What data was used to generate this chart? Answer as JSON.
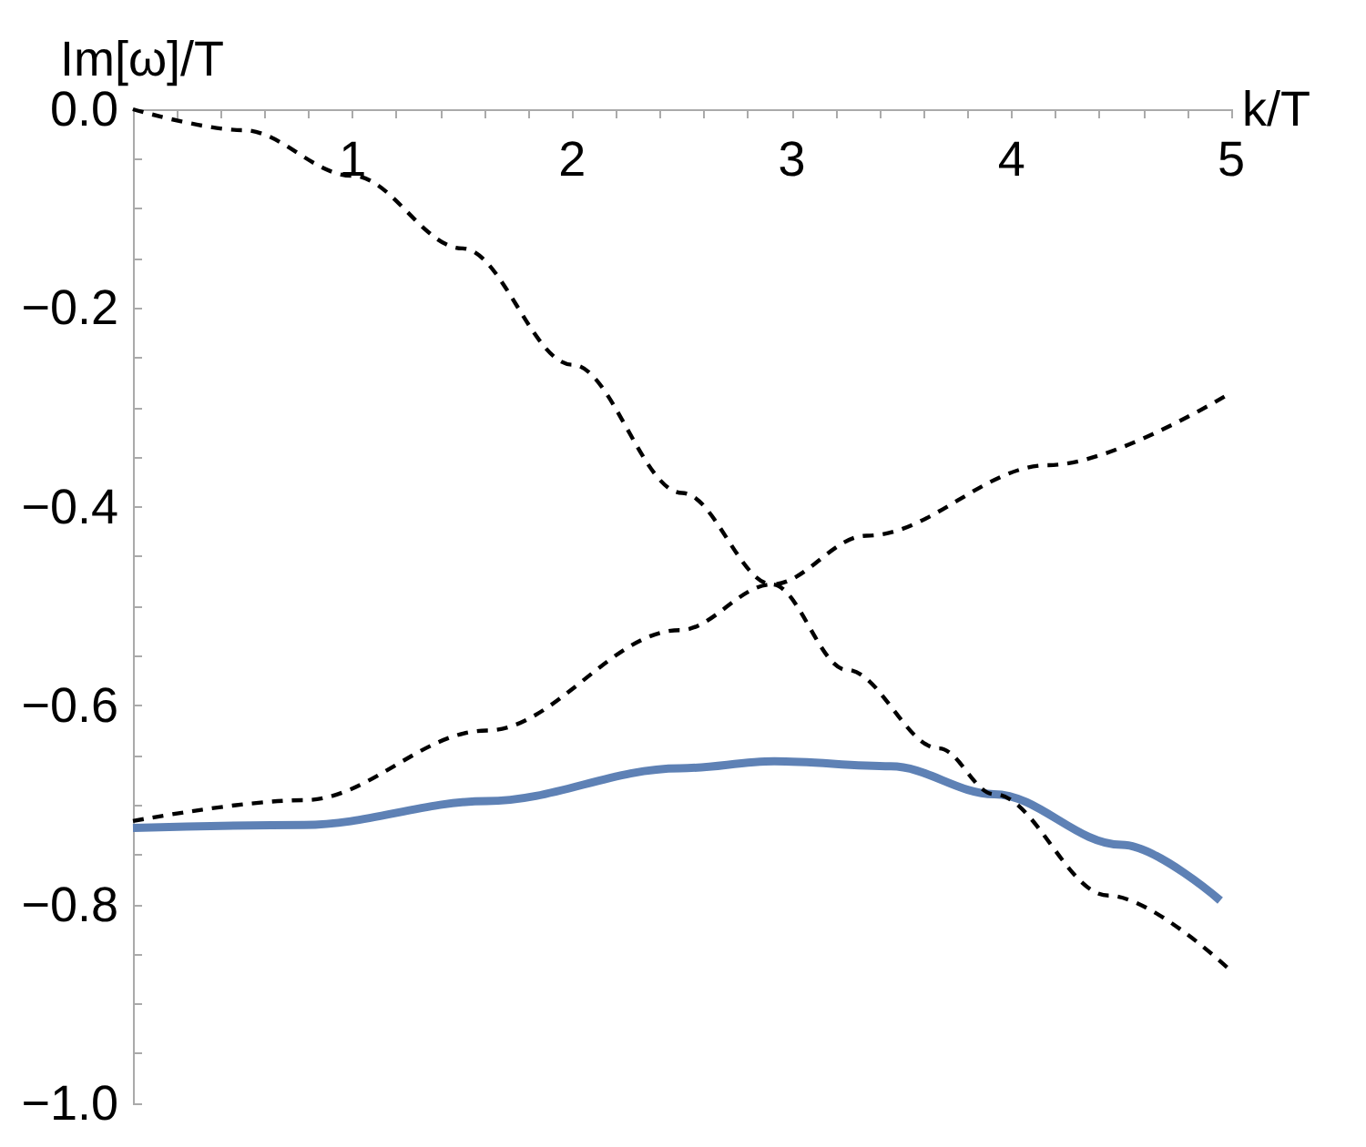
{
  "chart_data": {
    "type": "line",
    "xlabel": "k/T",
    "ylabel": "Im[ω]/T",
    "xlim": [
      0,
      5
    ],
    "ylim": [
      -1,
      0
    ],
    "xticks": [
      {
        "value": 0.2,
        "label": null
      },
      {
        "value": 0.4,
        "label": null
      },
      {
        "value": 0.6,
        "label": null
      },
      {
        "value": 0.8,
        "label": null
      },
      1,
      {
        "value": 1.2,
        "label": null
      },
      {
        "value": 1.4,
        "label": null
      },
      {
        "value": 1.6,
        "label": null
      },
      {
        "value": 1.8,
        "label": null
      },
      2,
      {
        "value": 2.2,
        "label": null
      },
      {
        "value": 2.4,
        "label": null
      },
      {
        "value": 2.6,
        "label": null
      },
      {
        "value": 2.8,
        "label": null
      },
      3,
      {
        "value": 3.2,
        "label": null
      },
      {
        "value": 3.4,
        "label": null
      },
      {
        "value": 3.6,
        "label": null
      },
      {
        "value": 3.8,
        "label": null
      },
      4,
      {
        "value": 4.2,
        "label": null
      },
      {
        "value": 4.4,
        "label": null
      },
      {
        "value": 4.6,
        "label": null
      },
      {
        "value": 4.8,
        "label": null
      },
      5
    ],
    "yticks": [
      {
        "value": 0,
        "label": "0.0"
      },
      {
        "value": -0.05,
        "label": null
      },
      {
        "value": -0.1,
        "label": null
      },
      {
        "value": -0.15,
        "label": null
      },
      {
        "value": -0.2,
        "label": "−0.2"
      },
      {
        "value": -0.25,
        "label": null
      },
      {
        "value": -0.3,
        "label": null
      },
      {
        "value": -0.35,
        "label": null
      },
      {
        "value": -0.4,
        "label": "−0.4"
      },
      {
        "value": -0.45,
        "label": null
      },
      {
        "value": -0.5,
        "label": null
      },
      {
        "value": -0.55,
        "label": null
      },
      {
        "value": -0.6,
        "label": "−0.6"
      },
      {
        "value": -0.65,
        "label": null
      },
      {
        "value": -0.7,
        "label": null
      },
      {
        "value": -0.75,
        "label": null
      },
      {
        "value": -0.8,
        "label": "−0.8"
      },
      {
        "value": -0.85,
        "label": null
      },
      {
        "value": -0.9,
        "label": null
      },
      {
        "value": -0.95,
        "label": null
      },
      {
        "value": -1,
        "label": "−1.0"
      }
    ],
    "grid": false,
    "marker": "none",
    "series": [
      {
        "color": "#000000",
        "line_style": "dashed",
        "x": [
          0,
          0.5,
          1,
          1.5,
          2,
          2.5,
          2.91,
          3.25,
          3.67,
          3.92,
          4.44,
          5
        ],
        "values": [
          0,
          -0.021,
          -0.067,
          -0.14,
          -0.257,
          -0.386,
          -0.478,
          -0.564,
          -0.643,
          -0.689,
          -0.791,
          -0.867
        ]
      },
      {
        "color": "#000000",
        "line_style": "dashed",
        "x": [
          0,
          0.78,
          1.61,
          2.49,
          2.91,
          3.34,
          4.17,
          5
        ],
        "values": [
          -0.716,
          -0.695,
          -0.625,
          -0.524,
          -0.478,
          -0.429,
          -0.358,
          -0.285
        ]
      },
      {
        "color": "#5e81b5",
        "line_style": "solid",
        "x": [
          0,
          0.78,
          1.61,
          2.49,
          2.92,
          3.45,
          3.92,
          4.5,
          4.95
        ],
        "values": [
          -0.723,
          -0.72,
          -0.696,
          -0.663,
          -0.656,
          -0.661,
          -0.689,
          -0.74,
          -0.796
        ]
      }
    ]
  }
}
